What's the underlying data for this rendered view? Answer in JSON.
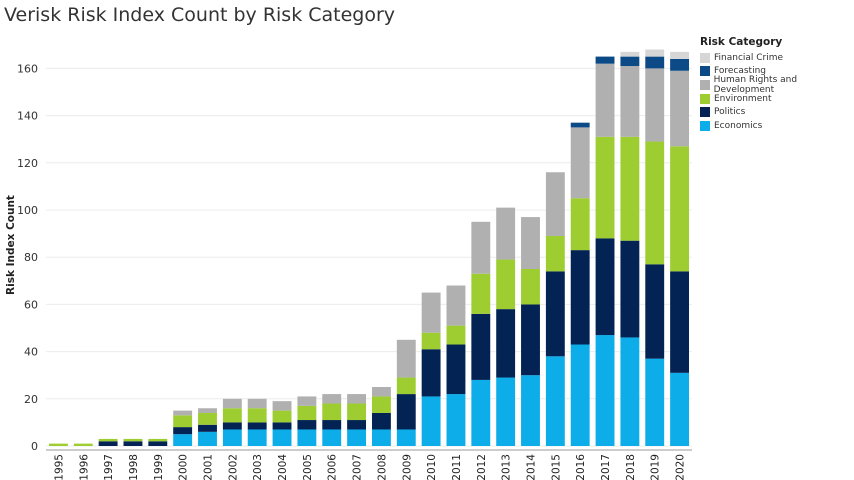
{
  "chart_data": {
    "type": "bar",
    "stacked": true,
    "title": "Verisk Risk Index Count by Risk Category",
    "xlabel": "",
    "ylabel": "Risk Index Count",
    "ylim": [
      0,
      170
    ],
    "yticks": [
      0,
      20,
      40,
      60,
      80,
      100,
      120,
      140,
      160
    ],
    "grid": true,
    "legend_title": "Risk Category",
    "legend_position": "top-right",
    "categories": [
      "1995",
      "1996",
      "1997",
      "1998",
      "1999",
      "2000",
      "2001",
      "2002",
      "2003",
      "2004",
      "2005",
      "2006",
      "2007",
      "2008",
      "2009",
      "2010",
      "2011",
      "2012",
      "2013",
      "2014",
      "2015",
      "2016",
      "2017",
      "2018",
      "2019",
      "2020"
    ],
    "series": [
      {
        "name": "Economics",
        "color": "#0dadea",
        "values": [
          0,
          0,
          0,
          0,
          0,
          5,
          6,
          7,
          7,
          7,
          7,
          7,
          7,
          7,
          7,
          21,
          22,
          28,
          29,
          30,
          38,
          43,
          47,
          46,
          37,
          31
        ]
      },
      {
        "name": "Politics",
        "color": "#022353",
        "values": [
          0,
          0,
          2,
          2,
          2,
          3,
          3,
          3,
          3,
          3,
          4,
          4,
          4,
          7,
          15,
          20,
          21,
          28,
          29,
          30,
          36,
          40,
          41,
          41,
          40,
          43
        ]
      },
      {
        "name": "Environment",
        "color": "#9dcd30",
        "values": [
          1,
          1,
          1,
          1,
          1,
          5,
          5,
          6,
          6,
          5,
          6,
          7,
          7,
          7,
          7,
          7,
          8,
          17,
          21,
          15,
          15,
          22,
          43,
          44,
          52,
          53
        ]
      },
      {
        "name": "Human Rights and Development",
        "color": "#b0b0b0",
        "values": [
          0,
          0,
          0,
          0,
          0,
          2,
          2,
          4,
          4,
          4,
          4,
          4,
          4,
          4,
          16,
          17,
          17,
          22,
          22,
          22,
          27,
          30,
          31,
          30,
          31,
          32
        ]
      },
      {
        "name": "Forecasting",
        "color": "#0b4a86",
        "values": [
          0,
          0,
          0,
          0,
          0,
          0,
          0,
          0,
          0,
          0,
          0,
          0,
          0,
          0,
          0,
          0,
          0,
          0,
          0,
          0,
          0,
          2,
          3,
          4,
          5,
          5
        ]
      },
      {
        "name": "Financial Crime",
        "color": "#d6d6d6",
        "values": [
          0,
          0,
          0,
          0,
          0,
          0,
          0,
          0,
          0,
          0,
          0,
          0,
          0,
          0,
          0,
          0,
          0,
          0,
          0,
          0,
          0,
          0,
          0,
          2,
          3,
          3
        ]
      }
    ]
  }
}
